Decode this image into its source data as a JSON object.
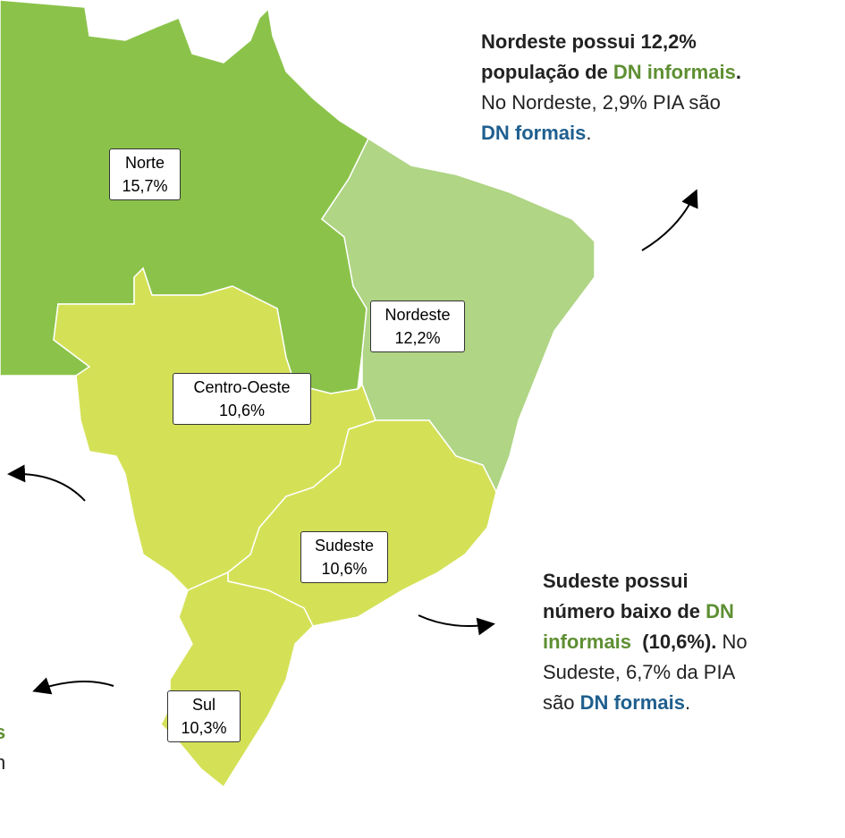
{
  "regions": [
    {
      "name": "Norte",
      "value": "15,7%",
      "color": "#8bc34a"
    },
    {
      "name": "Nordeste",
      "value": "12,2%",
      "color": "#afd585"
    },
    {
      "name": "Centro-Oeste",
      "value": "10,6%",
      "color": "#d4e157"
    },
    {
      "name": "Sudeste",
      "value": "10,6%",
      "color": "#d4e157"
    },
    {
      "name": "Sul",
      "value": "10,3%",
      "color": "#d4e157"
    }
  ],
  "annotations": [
    {
      "lines": [
        [
          {
            "text": "Nordeste possui 12,2%",
            "style": "bold"
          }
        ],
        [
          {
            "text": "população de ",
            "style": "bold"
          },
          {
            "text": "DN informais",
            "style": "green"
          },
          {
            "text": ".",
            "style": "bold"
          }
        ],
        [
          {
            "text": "No Nordeste, 2,9% PIA são",
            "style": "normal"
          }
        ],
        [
          {
            "text": "DN formais",
            "style": "blue"
          },
          {
            "text": ".",
            "style": "normal"
          }
        ]
      ]
    },
    {
      "lines": [
        [
          {
            "text": "Sudeste possui",
            "style": "bold"
          }
        ],
        [
          {
            "text": "número baixo de ",
            "style": "bold"
          },
          {
            "text": "DN",
            "style": "green"
          }
        ],
        [
          {
            "text": "informais",
            "style": "green"
          },
          {
            "text": "  (10,6%).",
            "style": "bold"
          },
          {
            "text": " No",
            "style": "normal"
          }
        ],
        [
          {
            "text": "Sudeste, 6,7% da PIA",
            "style": "normal"
          }
        ],
        [
          {
            "text": "são ",
            "style": "normal"
          },
          {
            "text": "DN formais",
            "style": "blue"
          },
          {
            "text": ".",
            "style": "normal"
          }
        ]
      ]
    },
    {
      "lines": [
        [
          {
            "text": "s",
            "style": "green"
          }
        ],
        [
          {
            "text": "n",
            "style": "normal"
          }
        ]
      ]
    }
  ]
}
